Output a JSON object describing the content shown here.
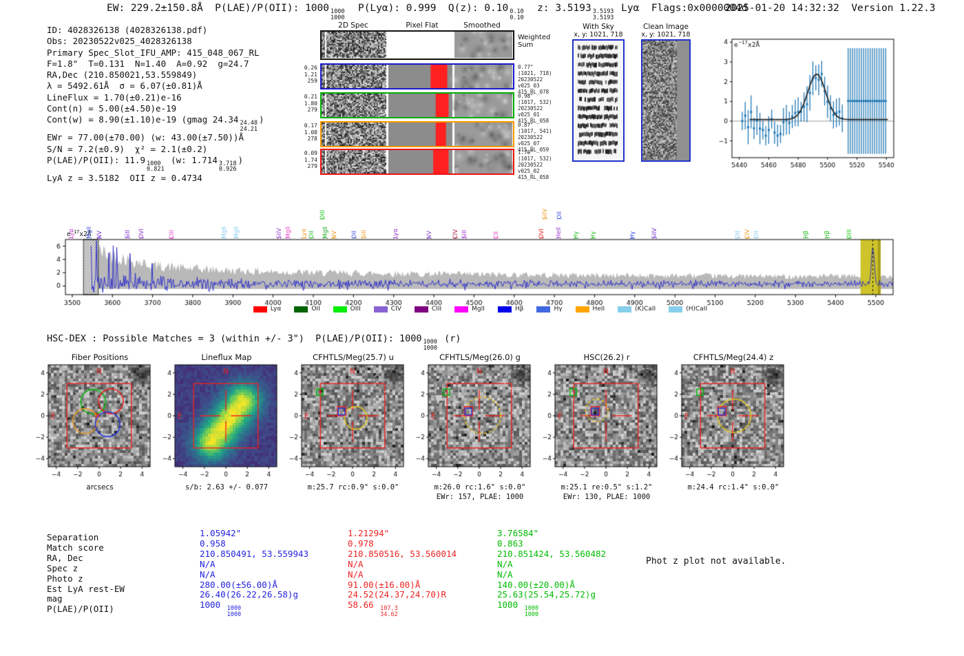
{
  "header": {
    "segments": [
      {
        "t": "EW: 229.2±150.8Å  P(LAE)/P(OII): 1000"
      },
      {
        "frac": [
          "1000",
          "1000"
        ]
      },
      {
        "t": "  P(Lyα): 0.999  Q(z): 0.10"
      },
      {
        "frac": [
          "0.10",
          "0.10"
        ]
      },
      {
        "t": "  z: 3.5193"
      },
      {
        "frac": [
          "3.5193",
          "3.5193"
        ]
      },
      {
        "t": " Lyα  Flags:0x0000004d"
      }
    ],
    "timestamp": "2025-01-20 14:32:32  Version 1.22.3"
  },
  "info": {
    "lines": [
      [
        {
          "t": "ID: 4028326138 (4028326138.pdf)"
        }
      ],
      [
        {
          "t": "Obs: 20230522v025_4028326138"
        }
      ],
      [
        {
          "t": "Primary Spec_Slot_IFU_AMP: 415_048_067_RL"
        }
      ],
      [
        {
          "t": "F=1.8\"  T=0.131  N=1.40  A=0.92  g=24.7"
        }
      ],
      [
        {
          "t": "RA,Dec (210.850021,53.559849)"
        }
      ],
      [
        {
          "t": "λ = 5492.61Å  σ = 6.07(±0.81)Å"
        }
      ],
      [
        {
          "t": "LineFlux = 1.70(±0.21)e-16"
        }
      ],
      [
        {
          "t": "Cont(n) = 5.00(±4.50)e-19"
        }
      ],
      [
        {
          "t": "Cont(w) = 8.90(±1.10)e-19 (gmag 24.34"
        },
        {
          "frac": [
            "24.48",
            "24.21"
          ]
        },
        {
          "t": ")"
        }
      ],
      [
        {
          "t": "EWr = 77.00(±70.00) (w: 43.00(±7.50))Å"
        }
      ],
      [
        {
          "t": "S/N = 7.2(±0.9)  χ² = 2.1(±0.2)"
        }
      ],
      [
        {
          "t": "P(LAE)/P(OII): 11.9"
        },
        {
          "frac": [
            "1000",
            "0.821"
          ]
        },
        {
          "t": " (w: 1.714"
        },
        {
          "frac": [
            "3.718",
            "0.926"
          ]
        },
        {
          "t": ")"
        }
      ],
      [
        {
          "t": "LyA z = 3.5182  OII z = 0.4734"
        }
      ]
    ]
  },
  "spec2d": {
    "col_titles": [
      "2D Spec",
      "Pixel Flat",
      "Smoothed"
    ],
    "weighted_label_1": "Weighted",
    "weighted_label_2": "Sum",
    "rows": [
      {
        "border": "#1a1acc",
        "left": [
          "0.26",
          "1.21",
          "259"
        ],
        "right": [
          "0.77\"",
          "(1021, 718)",
          "20230522",
          "v025_03",
          "415_RL_078"
        ]
      },
      {
        "border": "#00b000",
        "left": [
          "0.21",
          "1.80",
          "279"
        ],
        "right": [
          "0.98\"",
          "(1017, 532)",
          "20230522",
          "v025_01",
          "415_RL_058"
        ]
      },
      {
        "border": "#ff9900",
        "left": [
          "0.17",
          "1.08",
          "278"
        ],
        "right": [
          "0.87\"",
          "(1017, 541)",
          "20230522",
          "v025_07",
          "415_RL_059"
        ]
      },
      {
        "border": "#ee1111",
        "left": [
          "0.09",
          "1.74",
          "279"
        ],
        "right": [
          "1.70\"",
          "(1017, 532)",
          "20230522",
          "v025_02",
          "415_RL_058"
        ]
      }
    ]
  },
  "sky": {
    "with_sky": {
      "title": "With Sky",
      "coords": "x, y: 1021, 718"
    },
    "clean": {
      "title": "Clean Image",
      "coords": "x, y: 1021, 718"
    }
  },
  "chart_data": [
    {
      "type": "line",
      "title": "emission line fit zoom",
      "ylabel_parts": {
        "base": "e",
        "sup": "−17",
        "suffix": "x2Å"
      },
      "xlim": [
        5435,
        5545
      ],
      "ylim": [
        -1.85,
        4.15
      ],
      "xticks": [
        5440,
        5460,
        5480,
        5500,
        5520,
        5540
      ],
      "yticks": [
        -1,
        0,
        1,
        2,
        3,
        4
      ],
      "point_step": 2,
      "color": "#1f77b4",
      "fit_color": "#222222",
      "gaussian_fit": {
        "center": 5492.61,
        "sigma": 6.07,
        "peak": 2.3,
        "baseline": 0.08
      },
      "saturated_region": {
        "x_start": 5514,
        "x_end": 5540,
        "y": 1.02,
        "err": 2.68
      }
    },
    {
      "type": "line",
      "title": "full spectrum",
      "ylabel_parts": {
        "base": "e",
        "sup": "−17",
        "suffix": "x2Å"
      },
      "xlim": [
        3483,
        5543
      ],
      "ylim": [
        -1.3,
        7.0
      ],
      "xticks": [
        3500,
        3600,
        3700,
        3800,
        3900,
        4000,
        4100,
        4200,
        4300,
        4400,
        4500,
        4600,
        4700,
        4800,
        4900,
        5000,
        5100,
        5200,
        5300,
        5400,
        5500
      ],
      "yticks": [
        0,
        2,
        4,
        6
      ],
      "line_color": "#2222cc",
      "envelope_color": "#b9b9b9",
      "highlight_color": "#cdc32b",
      "masked_region": [
        3528,
        3565
      ],
      "highlight_region": [
        5462,
        5512
      ],
      "emission": {
        "center": 5492.61,
        "sigma": 3.5,
        "height": 5.6
      },
      "noise_envelope": [
        [
          3550,
          5.6
        ],
        [
          3600,
          4.6
        ],
        [
          3700,
          3.1
        ],
        [
          3800,
          2.6
        ],
        [
          3900,
          2.3
        ],
        [
          4100,
          2.0
        ],
        [
          4400,
          1.8
        ],
        [
          4700,
          1.65
        ],
        [
          5000,
          1.55
        ],
        [
          5300,
          1.45
        ],
        [
          5543,
          1.5
        ]
      ]
    }
  ],
  "spectrum_labels": [
    {
      "wl": 3500,
      "name": "Lyα",
      "color": "#cc44cc",
      "row": 0
    },
    {
      "wl": 3545,
      "name": "MgII",
      "color": "#4455dd",
      "row": 0
    },
    {
      "wl": 3570,
      "name": "NV",
      "color": "#7733cc",
      "row": 0
    },
    {
      "wl": 3640,
      "name": "SiII",
      "color": "#8833cc",
      "row": 0
    },
    {
      "wl": 3675,
      "name": "OVI",
      "color": "#8833cc",
      "row": 0
    },
    {
      "wl": 3750,
      "name": "CIII",
      "color": "#ee44cc",
      "row": 0
    },
    {
      "wl": 3880,
      "name": "MgII",
      "color": "#88ccee",
      "row": 0
    },
    {
      "wl": 3912,
      "name": "MgII",
      "color": "#88ccee",
      "row": 0
    },
    {
      "wl": 4018,
      "name": "SiIV",
      "color": "#9944cc",
      "row": 0
    },
    {
      "wl": 4040,
      "name": "MgII",
      "color": "#ee44cc",
      "row": 0
    },
    {
      "wl": 4079,
      "name": "Lyα",
      "color": "#ee9922",
      "row": 0
    },
    {
      "wl": 4098,
      "name": "OII",
      "color": "#33bb33",
      "row": 0
    },
    {
      "wl": 4126,
      "name": "OIII",
      "color": "#22cc22",
      "row": 1
    },
    {
      "wl": 4132,
      "name": "MgII",
      "color": "#22aa22",
      "row": 0
    },
    {
      "wl": 4155,
      "name": "NV",
      "color": "#ee9922",
      "row": 0
    },
    {
      "wl": 4205,
      "name": "OII",
      "color": "#4455dd",
      "row": 0
    },
    {
      "wl": 4228,
      "name": "SiII",
      "color": "#ee9922",
      "row": 0
    },
    {
      "wl": 4307,
      "name": "Lyα",
      "color": "#9933cc",
      "row": 0
    },
    {
      "wl": 4391,
      "name": "NV",
      "color": "#8844cc",
      "row": 0
    },
    {
      "wl": 4457,
      "name": "CIV",
      "color": "#aa2244",
      "row": 0
    },
    {
      "wl": 4478,
      "name": "SiII",
      "color": "#9933cc",
      "row": 0
    },
    {
      "wl": 4558,
      "name": "CII",
      "color": "#ee44cc",
      "row": 0
    },
    {
      "wl": 4670,
      "name": "OVI",
      "color": "#ee2222",
      "row": 0
    },
    {
      "wl": 4680,
      "name": "SiIV",
      "color": "#ee9922",
      "row": 1
    },
    {
      "wl": 4716,
      "name": "OII",
      "color": "#4455dd",
      "row": 1
    },
    {
      "wl": 4714,
      "name": "HeII",
      "color": "#9933cc",
      "row": 0
    },
    {
      "wl": 4757,
      "name": "Hγ",
      "color": "#22bb22",
      "row": 0
    },
    {
      "wl": 4800,
      "name": "Hγ",
      "color": "#22bb22",
      "row": 0
    },
    {
      "wl": 4897,
      "name": "Hγ",
      "color": "#3344ee",
      "row": 0
    },
    {
      "wl": 4952,
      "name": "SiIV",
      "color": "#7733cc",
      "row": 0
    },
    {
      "wl": 5159,
      "name": "OII",
      "color": "#88ccee",
      "row": 0
    },
    {
      "wl": 5183,
      "name": "CIV",
      "color": "#ee9922",
      "row": 0
    },
    {
      "wl": 5205,
      "name": "OII",
      "color": "#88ccee",
      "row": 0
    },
    {
      "wl": 5328,
      "name": "Hβ",
      "color": "#22bb22",
      "row": 0
    },
    {
      "wl": 5382,
      "name": "Hβ",
      "color": "#22bb22",
      "row": 0
    },
    {
      "wl": 5436,
      "name": "OIII",
      "color": "#22cc22",
      "row": 0
    }
  ],
  "legend": [
    {
      "label": "Lyα",
      "color": "#ff0000"
    },
    {
      "label": "OII",
      "color": "#006400"
    },
    {
      "label": "OIII",
      "color": "#00ee00"
    },
    {
      "label": "CIV",
      "color": "#8a63d2"
    },
    {
      "label": "CIII",
      "color": "#800080"
    },
    {
      "label": "MgII",
      "color": "#ff00ff"
    },
    {
      "label": "Hβ",
      "color": "#0000ee"
    },
    {
      "label": "Hγ",
      "color": "#4169e1"
    },
    {
      "label": "HeII",
      "color": "#ffa500"
    },
    {
      "label": "(K)CaII",
      "color": "#87ceeb"
    },
    {
      "label": "(H)CaII",
      "color": "#87ceeb"
    }
  ],
  "hsc_dex": {
    "segments": [
      {
        "t": "HSC-DEX : Possible Matches = 3 (within +/- 3\")  P(LAE)/P(OII): 1000"
      },
      {
        "frac": [
          "1000",
          "1000"
        ]
      },
      {
        "t": " (r)"
      }
    ]
  },
  "cutouts": [
    {
      "title": "Fiber Positions",
      "xlabel": "arcsecs",
      "captions": []
    },
    {
      "title": "Lineflux Map",
      "captions": [
        "s/b: 2.63 +/- 0.077"
      ]
    },
    {
      "title": "CFHTLS/Meg(25.7) u",
      "captions": [
        "m:25.7 rc:0.9\"  s:0.0\""
      ]
    },
    {
      "title": "CFHTLS/Meg(26.0) g",
      "captions": [
        "m:26.0 rc:1.6\"  s:0.0\"",
        "EWr: 157, PLAE: 1000"
      ]
    },
    {
      "title": "HSC(26.2) r",
      "captions": [
        "m:25.1  re:0.5\"  s:1.2\"",
        "EWr: 130, PLAE: 1000"
      ]
    },
    {
      "title": "CFHTLS/Meg(24.4) z",
      "captions": [
        "m:24.4 rc:1.4\"  s:0.0\""
      ]
    }
  ],
  "cutout_ticks": [
    -4,
    -2,
    0,
    2,
    4
  ],
  "compass": {
    "north": "N",
    "east": "E"
  },
  "matches": {
    "row_labels": [
      "Separation",
      "Match score",
      "RA, Dec",
      "Spec z",
      "Photo z",
      "Est LyA rest-EW",
      "mag",
      "P(LAE)/P(OII)"
    ],
    "columns": [
      {
        "color": "#2222dd",
        "values": [
          "1.05942\"",
          "0.958",
          "210.850491, 53.559943",
          "N/A",
          "N/A",
          "280.00(±56.00)Å",
          "26.40(26.22,26.58)g"
        ],
        "plae": {
          "main": "1000",
          "hi": "1000",
          "lo": "1000"
        }
      },
      {
        "color": "#ee2222",
        "values": [
          "1.21294\"",
          "0.978",
          "210.850516, 53.560014",
          "N/A",
          "N/A",
          "91.00(±16.00)Å",
          "24.52(24.37,24.70)R"
        ],
        "plae": {
          "main": "58.66",
          "hi": "107.3",
          "lo": "34.62"
        }
      },
      {
        "color": "#00bb00",
        "values": [
          "3.76584\"",
          "0.863",
          "210.851424, 53.560482",
          "N/A",
          "N/A",
          "140.00(±20.00)Å",
          "25.63(25.54,25.72)g"
        ],
        "plae": {
          "main": "1000",
          "hi": "1000",
          "lo": "1000"
        }
      }
    ],
    "note": "Phot z plot not available."
  }
}
